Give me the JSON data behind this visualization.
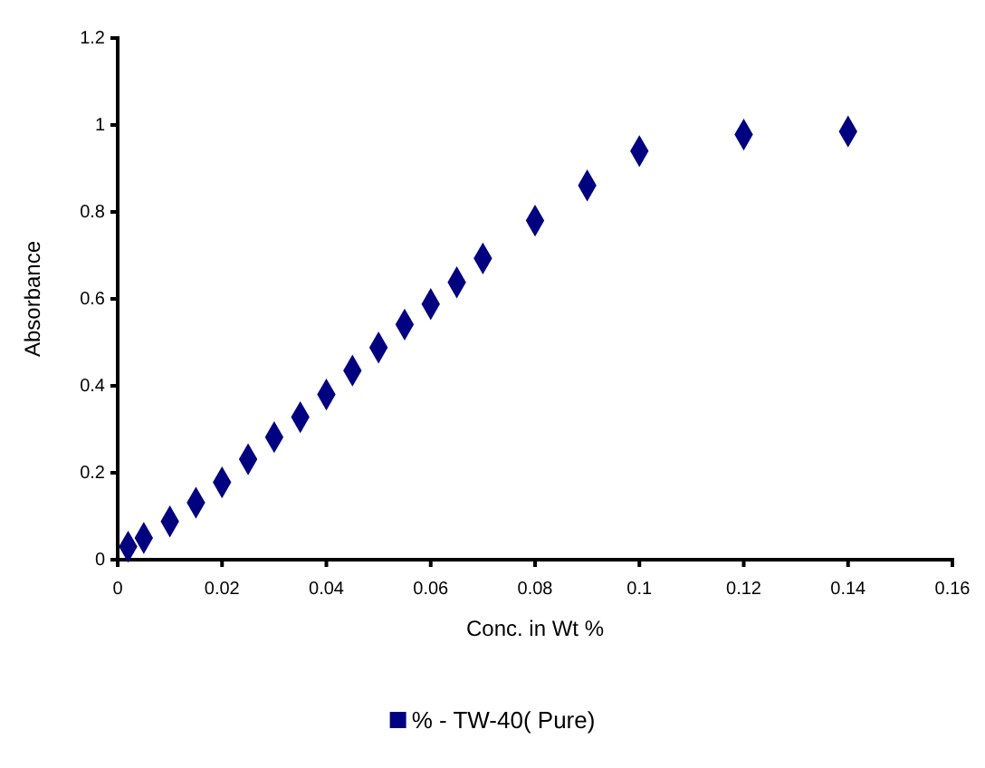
{
  "chart_data": {
    "type": "scatter",
    "xlabel": "Conc. in Wt %",
    "ylabel": "Absorbance",
    "x": [
      0.002,
      0.005,
      0.01,
      0.015,
      0.02,
      0.025,
      0.03,
      0.035,
      0.04,
      0.045,
      0.05,
      0.055,
      0.06,
      0.065,
      0.07,
      0.08,
      0.09,
      0.1,
      0.12,
      0.14
    ],
    "series": [
      {
        "name": "% - TW-40( Pure)",
        "color": "#000080",
        "values": [
          0.03,
          0.05,
          0.088,
          0.131,
          0.178,
          0.231,
          0.282,
          0.328,
          0.38,
          0.435,
          0.488,
          0.541,
          0.588,
          0.638,
          0.693,
          0.78,
          0.861,
          0.94,
          0.978,
          0.985
        ]
      }
    ],
    "xlim": [
      0,
      0.16
    ],
    "xticks": [
      0,
      0.02,
      0.04,
      0.06,
      0.08,
      0.1,
      0.12,
      0.14,
      0.16
    ],
    "ylim": [
      0,
      1.2
    ],
    "yticks": [
      0,
      0.2,
      0.4,
      0.6,
      0.8,
      1,
      1.2
    ],
    "marker": "diamond",
    "legend": "bottom",
    "grid": false
  }
}
